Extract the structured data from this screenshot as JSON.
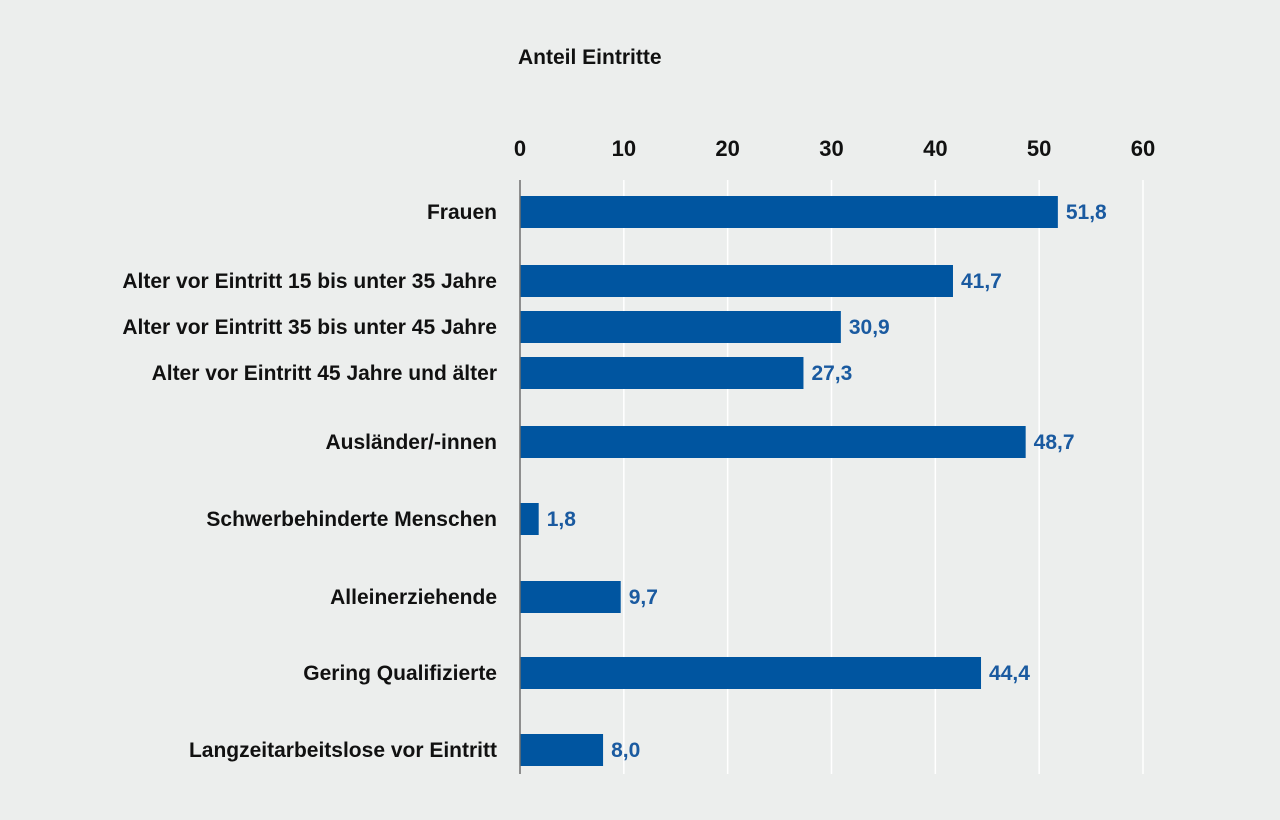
{
  "chart_data": {
    "type": "bar",
    "orientation": "horizontal",
    "title": "",
    "xlabel": "Anteil Eintritte",
    "ylabel": "",
    "xlim": [
      0,
      60
    ],
    "x_ticks": [
      "0",
      "10",
      "20",
      "30",
      "40",
      "50",
      "60"
    ],
    "grid": true,
    "legend": "none",
    "categories": [
      "Frauen",
      "Alter vor Eintritt 15 bis unter 35 Jahre",
      "Alter vor Eintritt 35 bis unter 45 Jahre",
      "Alter vor Eintritt 45 Jahre und älter",
      "Ausländer/-innen",
      "Schwerbehinderte Menschen",
      "Alleinerziehende",
      "Gering Qualifizierte",
      "Langzeitarbeitslose vor Eintritt"
    ],
    "values": [
      51.8,
      41.7,
      30.9,
      27.3,
      48.7,
      1.8,
      9.7,
      44.4,
      8.0
    ],
    "value_labels": [
      "51,8",
      "41,7",
      "30,9",
      "27,3",
      "48,7",
      "1,8",
      "9,7",
      "44,4",
      "8,0"
    ],
    "colors": {
      "bar": "#0055a0",
      "value_label": "#1a5aa0",
      "background": "#eceeed",
      "gridline": "#ffffff",
      "text": "#111111"
    }
  }
}
